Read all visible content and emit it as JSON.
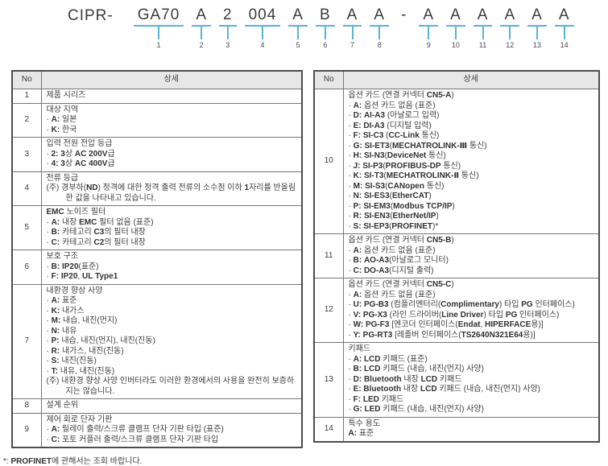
{
  "colors": {
    "accent_blue": "#57b4dd",
    "border_dark": "#4d4d4d",
    "border_light": "#767676",
    "header_bg": "#e7e7e7",
    "text": "#3d3d3d"
  },
  "model": {
    "prefix": "CIPR-",
    "segments": [
      {
        "text": "GA70",
        "num": "1"
      },
      {
        "text": "A",
        "num": "2"
      },
      {
        "text": "2",
        "num": "3"
      },
      {
        "text": "004",
        "num": "4"
      },
      {
        "text": "A",
        "num": "5"
      },
      {
        "text": "B",
        "num": "6"
      },
      {
        "text": "A",
        "num": "7"
      },
      {
        "text": "A",
        "num": "8"
      },
      {
        "text": "-",
        "num": ""
      },
      {
        "text": "A",
        "num": "9"
      },
      {
        "text": "A",
        "num": "10"
      },
      {
        "text": "A",
        "num": "11"
      },
      {
        "text": "A",
        "num": "12"
      },
      {
        "text": "A",
        "num": "13"
      },
      {
        "text": "A",
        "num": "14"
      }
    ]
  },
  "table_headers": {
    "no": "No",
    "detail": "상세"
  },
  "left_table": {
    "rows": [
      {
        "no": "1",
        "lines": [
          "제품 시리즈"
        ]
      },
      {
        "no": "2",
        "lines": [
          "대상 지역",
          "· A: 일본",
          "· K: 한국"
        ]
      },
      {
        "no": "3",
        "lines": [
          "입력 전원 전압 등급",
          "· 2: 3상 AC 200V급",
          "· 4: 3상 AC 400V급"
        ]
      },
      {
        "no": "4",
        "lines": [
          "전류 등급",
          "(주) 경부하(ND) 정격에 대한 정격 출력 전류의 소수점 이하 1자리를 반올림한 값을 나타내고 있습니다."
        ]
      },
      {
        "no": "5",
        "lines": [
          "EMC 노이즈 필터",
          "· A: 내장 EMC 필터 없음 (표준)",
          "· B: 카테고리 C3의 필터 내장",
          "· C: 카테고리 C2의 필터 내장"
        ]
      },
      {
        "no": "6",
        "lines": [
          "보호 구조",
          "· B: IP20(표준)",
          "· F: IP20, UL Type1"
        ]
      },
      {
        "no": "7",
        "lines": [
          "내환경 향상 사양",
          "· A: 표준",
          "· K: 내가스",
          "· M: 내습, 내진(먼지)",
          "· N: 내유",
          "· P: 내습, 내진(먼지), 내진(진동)",
          "· R: 내가스, 내진(진동)",
          "· S: 내진(진동)",
          "· T: 내유, 내진(진동)",
          "(주) 내환경 향상 사양 인버터라도 이러한 환경에서의 사용을 완전히 보증하지는 않습니다."
        ]
      },
      {
        "no": "8",
        "lines": [
          "설계 순위"
        ]
      },
      {
        "no": "9",
        "lines": [
          "제어 회로 단자 기판",
          "· A: 릴레이 출력/스크류 클램프 단자 기판 타입 (표준)",
          "· C: 포토 커플러 출력/스크류 클램프 단자 기판 타입"
        ]
      }
    ]
  },
  "right_table": {
    "rows": [
      {
        "no": "10",
        "lines": [
          "옵션 카드 (연결 커넥터 CN5-A)",
          "· A: 옵션 카드 없음 (표준)",
          "· D: AI-A3 (아날로그 입력)",
          "· E: DI-A3 (디지털 입력)",
          "· F: SI-C3 (CC-Link 통신)",
          "· G: SI-ET3(MECHATROLINK-Ⅲ 통신)",
          "· H: SI-N3(DeviceNet 통신)",
          "· J: SI-P3(PROFIBUS-DP 통신)",
          "· K: SI-T3(MECHATROLINK-Ⅱ 통신)",
          "· M: SI-S3(CANopen 통신)",
          "· N: SI-ES3(EtherCAT)",
          "· P: SI-EM3(Modbus TCP/IP)",
          "· R: SI-EN3(EtherNet/IP)",
          "· S: SI-EP3(PROFINET)*"
        ]
      },
      {
        "no": "11",
        "lines": [
          "옵션 카드 (연결 커넥터 CN5-B)",
          "· A: 옵션 카드 없음 (표준)",
          "· B: AO-A3(아날로그 모니터)",
          "· C: DO-A3(디지털 출력)"
        ]
      },
      {
        "no": "12",
        "lines": [
          "옵션 카드 (연결 커넥터 CN5-C)",
          "· A: 옵션 카드 없음 (표준)",
          "· U: PG-B3 (컴플리멘터리(Complimentary) 타입 PG 인터페이스)",
          "· V: PG-X3 (라인 드라이버(Line Driver) 타입 PG 인터페이스)",
          "· W: PG-F3 [엔코더 인터페이스(Endat, HIPERFACE용)]",
          "· Y: PG-RT3 [레졸버 인터페이스(TS2640N321E64용)]"
        ]
      },
      {
        "no": "13",
        "lines": [
          "키패드",
          "· A: LCD 키패드 (표준)",
          "· B: LCD 키패드 (내습, 내진(먼지) 사양)",
          "· D: Bluetooth 내장 LCD 키패드",
          "· E: Bluetooth 내장 LCD 키패드 (내습, 내진(먼지) 사양)",
          "· F: LED 키패드",
          "· G: LED 키패드 (내습, 내진(먼지) 사양)"
        ]
      },
      {
        "no": "14",
        "lines": [
          "특수 용도",
          "A: 표준"
        ]
      }
    ]
  },
  "footnote": "*: PROFINET에 관해서는 조회 바랍니다."
}
